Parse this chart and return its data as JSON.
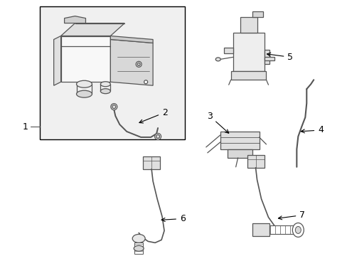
{
  "background_color": "#ffffff",
  "line_color": "#555555",
  "fill_light": "#e8e8e8",
  "fill_white": "#ffffff",
  "figsize": [
    4.89,
    3.6
  ],
  "dpi": 100
}
